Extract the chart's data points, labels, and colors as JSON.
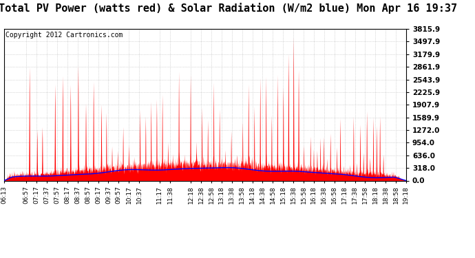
{
  "title": "Total PV Power (watts red) & Solar Radiation (W/m2 blue) Mon Apr 16 19:37",
  "copyright": "Copyright 2012 Cartronics.com",
  "yticks": [
    0.0,
    318.0,
    636.0,
    954.0,
    1272.0,
    1589.9,
    1907.9,
    2225.9,
    2543.9,
    2861.9,
    3179.9,
    3497.9,
    3815.9
  ],
  "ymax": 3815.9,
  "ymin": 0.0,
  "bg_color": "#ffffff",
  "plot_bg": "#ffffff",
  "red_color": "#ff0000",
  "blue_color": "#0000ff",
  "grid_color": "#888888",
  "title_fontsize": 11,
  "copyright_fontsize": 7,
  "xtick_fontsize": 6.5,
  "ytick_fontsize": 7.5,
  "xtick_labels": [
    "06:13",
    "06:57",
    "07:17",
    "07:37",
    "07:57",
    "08:17",
    "08:37",
    "08:57",
    "09:17",
    "09:37",
    "09:57",
    "10:17",
    "10:37",
    "11:17",
    "11:38",
    "12:18",
    "12:38",
    "12:58",
    "13:18",
    "13:38",
    "13:58",
    "14:18",
    "14:38",
    "14:58",
    "15:18",
    "15:38",
    "15:58",
    "16:18",
    "16:38",
    "16:58",
    "17:18",
    "17:38",
    "17:58",
    "18:18",
    "18:38",
    "18:58",
    "19:18"
  ]
}
